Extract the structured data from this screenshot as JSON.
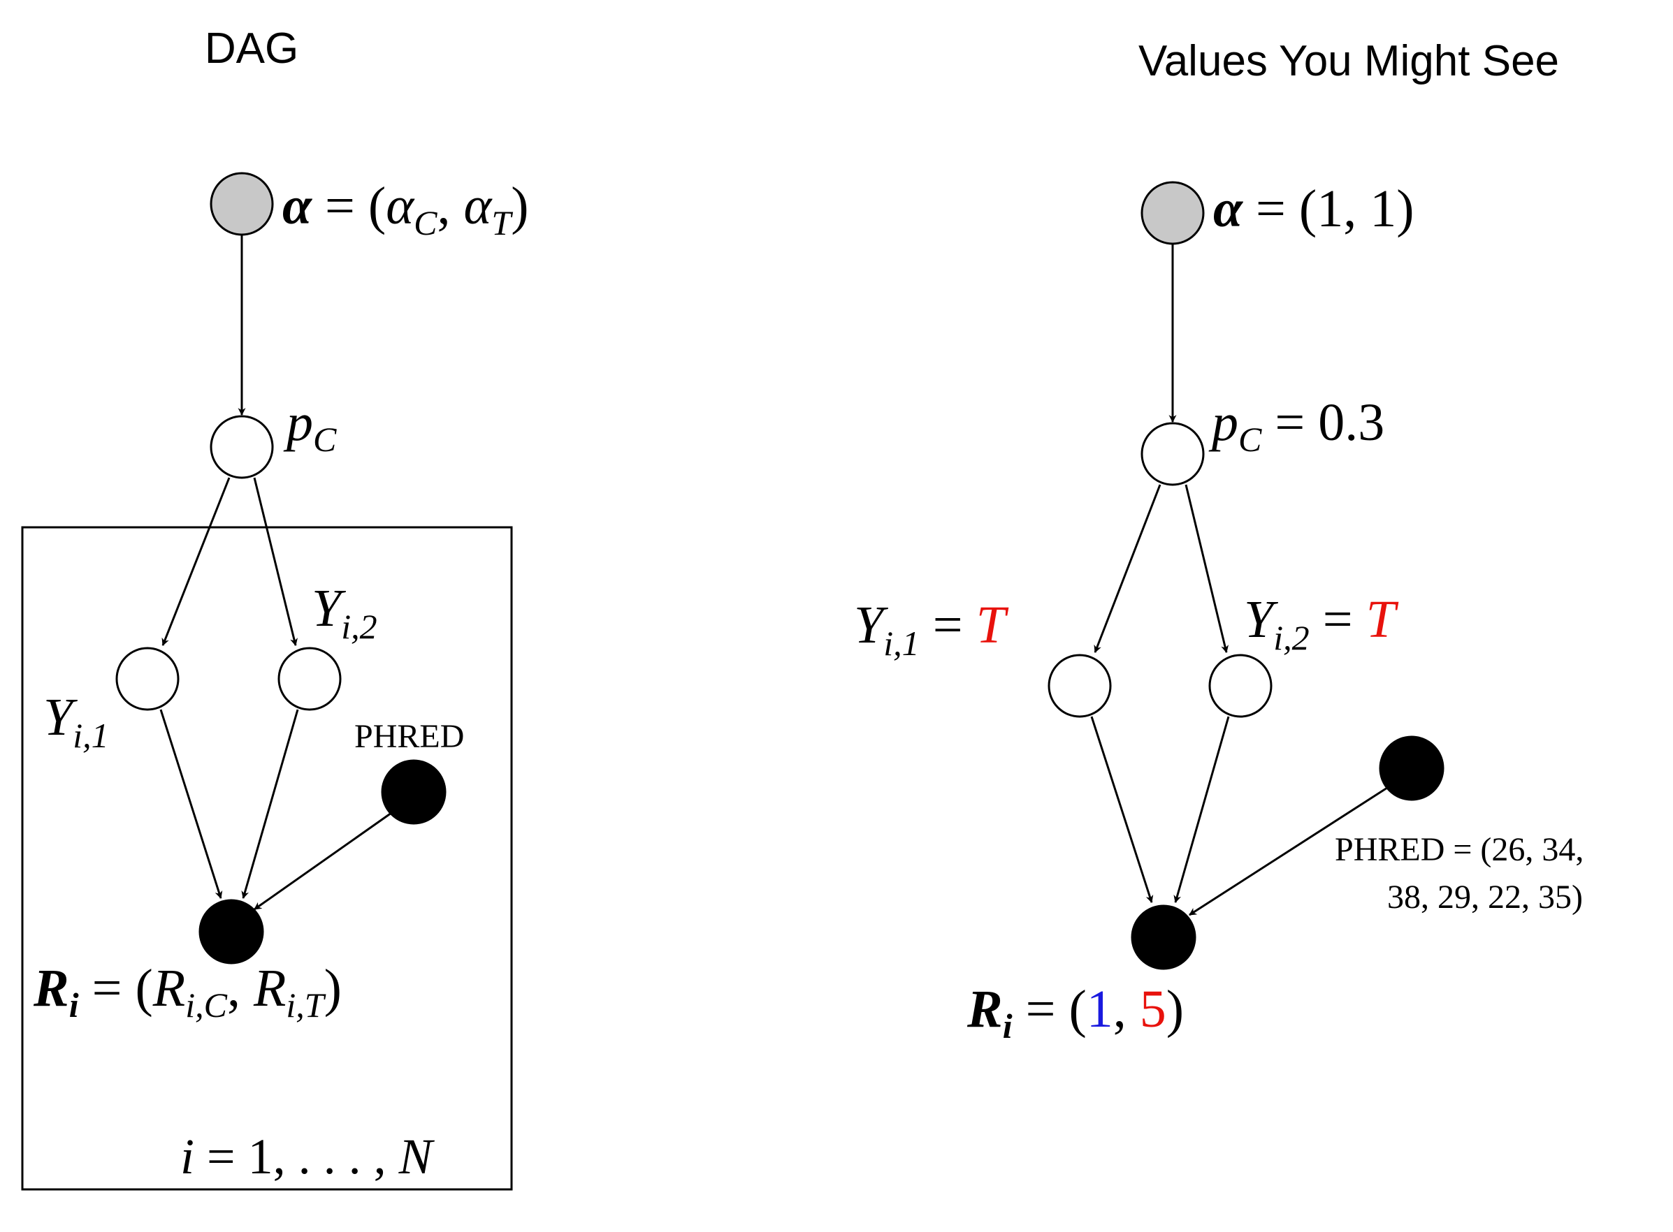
{
  "colors": {
    "ink": "#000000",
    "gray_node": "#c8c8c8",
    "red": "#e8120c",
    "blue": "#1a1adf"
  },
  "left": {
    "heading": "DAG",
    "alpha_label": {
      "sym": "α",
      "eq": " = (",
      "a1": "α",
      "a1sub": "C",
      "comma": ", ",
      "a2": "α",
      "a2sub": "T",
      "close": ")"
    },
    "pc_label": {
      "sym": "p",
      "sub": "C"
    },
    "y1_label": {
      "sym": "Y",
      "sub": "i,1"
    },
    "y2_label": {
      "sym": "Y",
      "sub": "i,2"
    },
    "phred_label": "PHRED",
    "r_label": {
      "sym": "R",
      "symsub": "i",
      "eq": " = (",
      "r1": "R",
      "r1sub": "i,C",
      "comma": ", ",
      "r2": "R",
      "r2sub": "i,T",
      "close": ")"
    },
    "plate_label": {
      "i": "i",
      "eq": " = 1, . . . , ",
      "n": "N"
    }
  },
  "right": {
    "heading": "Values You Might See",
    "alpha_label": {
      "sym": "α",
      "eq": " = (1, 1)"
    },
    "pc_label": {
      "sym": "p",
      "sub": "C",
      "eq": " = 0.3"
    },
    "y1_label": {
      "sym": "Y",
      "sub": "i,1",
      "eq": " = ",
      "val": "T"
    },
    "y2_label": {
      "sym": "Y",
      "sub": "i,2",
      "eq": " = ",
      "val": "T"
    },
    "phred_line1": "PHRED = (26, 34,",
    "phred_line2": "38, 29, 22, 35)",
    "r_label": {
      "sym": "R",
      "symsub": "i",
      "eq": " = (",
      "v1": "1",
      "comma": ", ",
      "v2": "5",
      "close": ")"
    }
  }
}
